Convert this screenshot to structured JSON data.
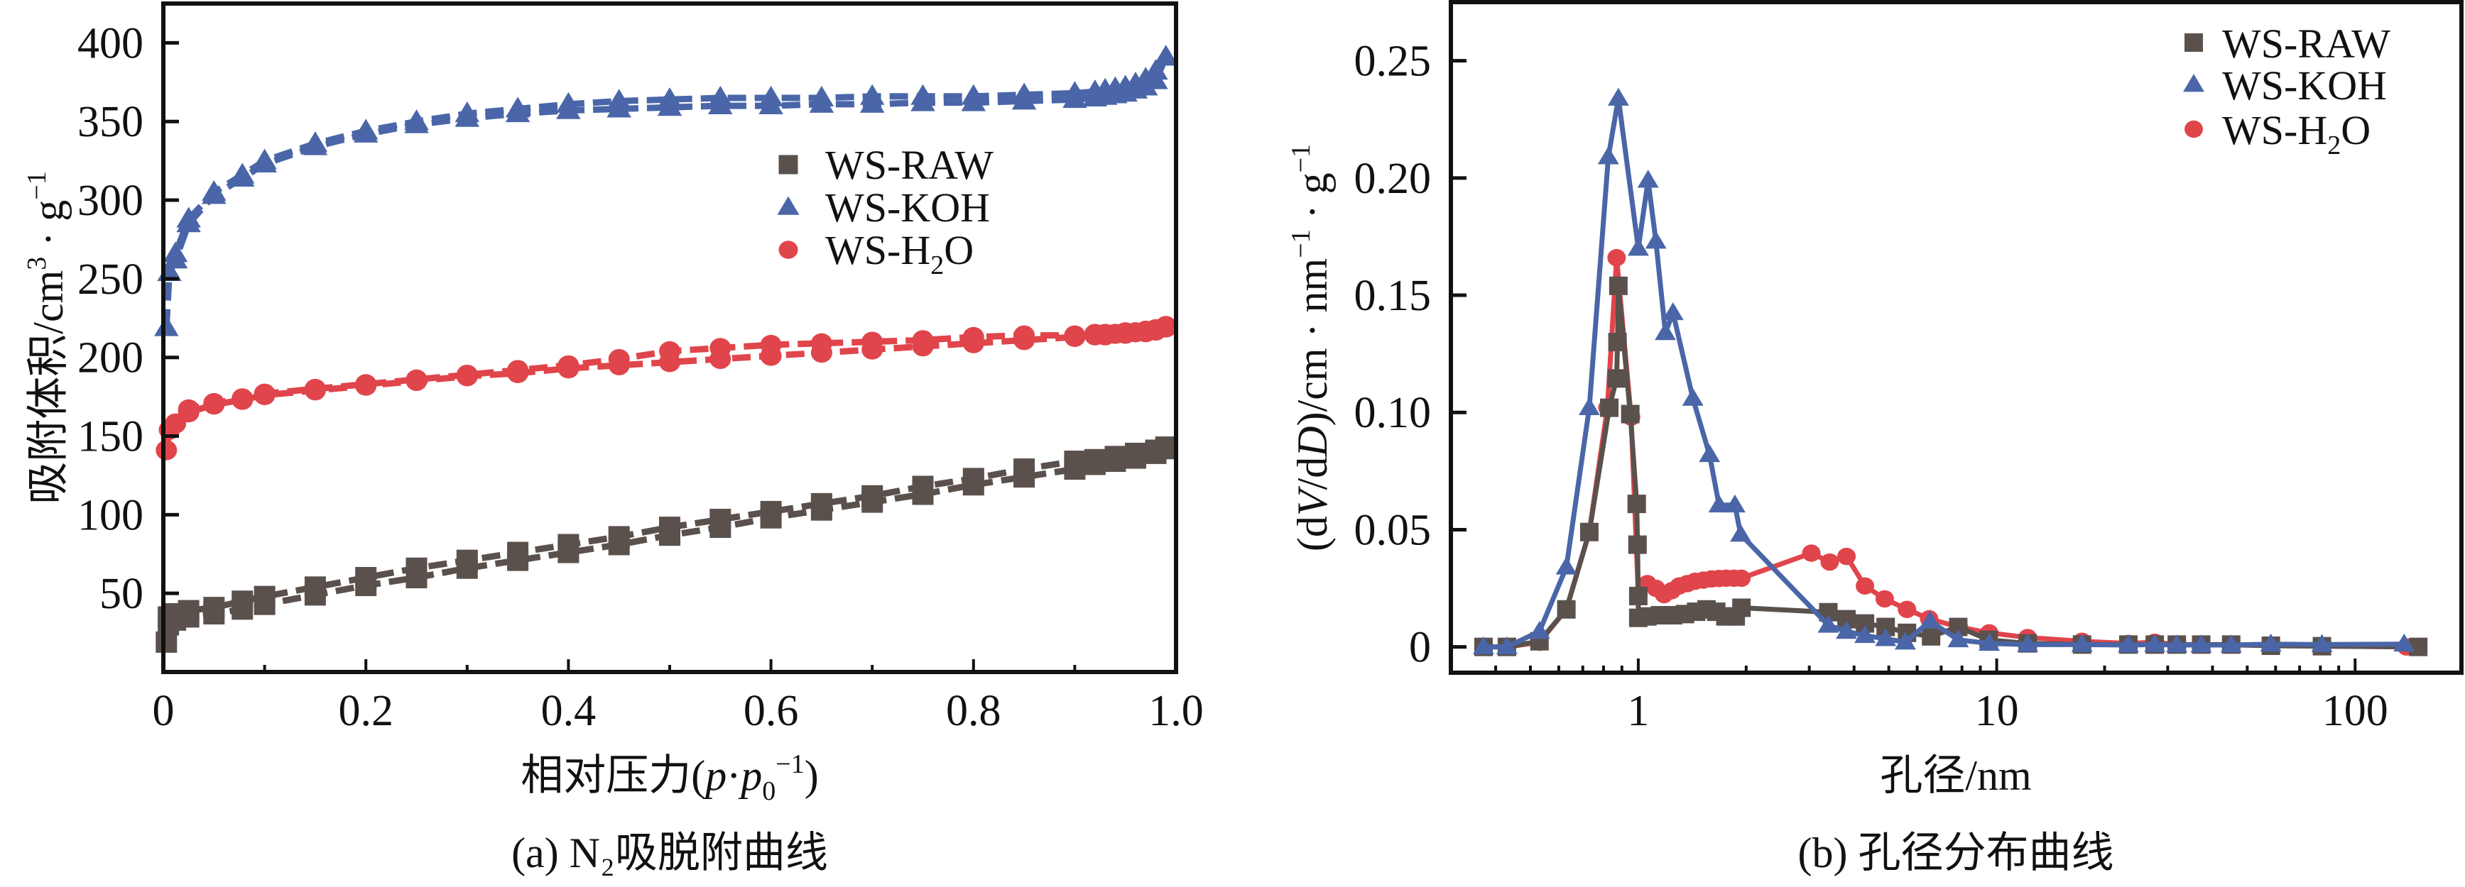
{
  "figure": {
    "captions": [
      "(a) N₂吸脱附曲线",
      "(b) 孔径分布曲线"
    ]
  },
  "colors": {
    "WS-RAW": "#5a514d",
    "WS-KOH": "#4a66a8",
    "WS-H2O": "#e0454b",
    "axis": "#111111"
  },
  "chart_data": [
    {
      "id": "a",
      "type": "line",
      "title": "(a) N₂吸脱附曲线",
      "xlabel": "相对压力( p·p₀⁻¹)",
      "xlabel_parts": {
        "prefix": "相对压力(",
        "p": "p",
        "dot": "·",
        "p0": "p",
        "sub": "0",
        "sup": "−1",
        "suffix": ")"
      },
      "ylabel": "吸附体积/cm³·g⁻¹",
      "ylabel_parts": {
        "main": "吸附体积/cm",
        "sup1": "3",
        "dot": " · g",
        "sup2": "−1"
      },
      "xlim": [
        0,
        1.0
      ],
      "ylim": [
        0,
        425
      ],
      "x_scale": "linear",
      "xticks": [
        0,
        0.2,
        0.4,
        0.6,
        0.8,
        1.0
      ],
      "xtick_labels": [
        "0",
        "0.2",
        "0.4",
        "0.6",
        "0.8",
        "1.0"
      ],
      "x_minor_ticks": [
        0.1,
        0.3,
        0.5,
        0.7,
        0.9
      ],
      "yticks": [
        50,
        100,
        150,
        200,
        250,
        300,
        350,
        400
      ],
      "ytick_labels": [
        "50",
        "100",
        "150",
        "200",
        "250",
        "300",
        "350",
        "400"
      ],
      "grid": false,
      "legend": {
        "position": "center-right",
        "entries": [
          "WS-RAW",
          "WS-KOH",
          "WS-H2O"
        ],
        "labels": [
          {
            "main": "WS-RAW",
            "sub": "",
            "tail": ""
          },
          {
            "main": "WS-KOH",
            "sub": "",
            "tail": ""
          },
          {
            "main": "WS-H",
            "sub": "2",
            "tail": "O"
          }
        ]
      },
      "series": [
        {
          "name": "WS-RAW",
          "marker": "square",
          "line": "dashed",
          "adsorption": {
            "x": [
              0.003,
              0.005,
              0.012,
              0.025,
              0.05,
              0.078,
              0.1,
              0.15,
              0.2,
              0.25,
              0.3,
              0.35,
              0.4,
              0.45,
              0.5,
              0.55,
              0.6,
              0.65,
              0.7,
              0.75,
              0.8,
              0.85,
              0.9,
              0.92,
              0.94,
              0.96,
              0.98,
              0.99
            ],
            "y": [
              19,
              30,
              33,
              35,
              37,
              40,
              43,
              49,
              55,
              60,
              66,
              71,
              76,
              81,
              87,
              92,
              98,
              103,
              108,
              113,
              119,
              124,
              129,
              132,
              134,
              136,
              139,
              142
            ]
          },
          "desorption": {
            "x": [
              0.99,
              0.98,
              0.96,
              0.94,
              0.92,
              0.9,
              0.85,
              0.8,
              0.75,
              0.7,
              0.65,
              0.6,
              0.55,
              0.5,
              0.45,
              0.4,
              0.35,
              0.3,
              0.25,
              0.2,
              0.15,
              0.1,
              0.078,
              0.05,
              0.025,
              0.012,
              0.005
            ],
            "y": [
              143,
              141,
              139,
              137,
              135,
              134,
              129,
              123,
              118,
              112,
              107,
              102,
              97,
              92,
              86,
              81,
              76,
              71,
              66,
              60,
              54,
              48,
              45,
              41,
              39,
              37,
              35
            ]
          }
        },
        {
          "name": "WS-KOH",
          "marker": "triangle",
          "line": "dashed",
          "adsorption": {
            "x": [
              0.003,
              0.006,
              0.012,
              0.025,
              0.05,
              0.078,
              0.1,
              0.15,
              0.2,
              0.25,
              0.3,
              0.35,
              0.4,
              0.45,
              0.5,
              0.55,
              0.6,
              0.65,
              0.7,
              0.75,
              0.8,
              0.85,
              0.9,
              0.92,
              0.93,
              0.94,
              0.95,
              0.96,
              0.97,
              0.98,
              0.99
            ],
            "y": [
              219,
              254,
              262,
              285,
              303,
              314,
              323,
              334,
              342,
              348,
              352,
              355,
              357,
              358,
              359,
              360,
              360,
              361,
              361,
              362,
              362,
              363,
              364,
              365,
              366,
              367,
              368,
              370,
              372,
              376,
              391
            ]
          },
          "desorption": {
            "x": [
              0.99,
              0.98,
              0.97,
              0.96,
              0.95,
              0.94,
              0.93,
              0.92,
              0.9,
              0.85,
              0.8,
              0.75,
              0.7,
              0.65,
              0.6,
              0.55,
              0.5,
              0.45,
              0.4,
              0.35,
              0.3,
              0.25,
              0.2,
              0.15,
              0.1,
              0.078,
              0.05,
              0.025,
              0.012
            ],
            "y": [
              391,
              382,
              377,
              374,
              372,
              371,
              370,
              369,
              368,
              367,
              366,
              366,
              366,
              365,
              365,
              365,
              364,
              363,
              361,
              358,
              355,
              350,
              344,
              336,
              325,
              316,
              305,
              288,
              266
            ]
          }
        },
        {
          "name": "WS-H2O",
          "marker": "circle",
          "line": "dashed",
          "adsorption": {
            "x": [
              0.003,
              0.006,
              0.012,
              0.025,
              0.05,
              0.078,
              0.1,
              0.15,
              0.2,
              0.25,
              0.3,
              0.35,
              0.4,
              0.45,
              0.5,
              0.55,
              0.6,
              0.65,
              0.7,
              0.75,
              0.8,
              0.85,
              0.9,
              0.92,
              0.93,
              0.94,
              0.95,
              0.96,
              0.97,
              0.98,
              0.99
            ],
            "y": [
              141,
              154,
              158,
              165,
              170,
              173,
              176,
              179,
              182,
              185,
              188,
              190,
              193,
              195,
              197,
              199,
              201,
              203,
              205,
              207,
              209,
              211,
              213,
              214,
              214,
              215,
              215,
              216,
              216,
              217,
              219
            ]
          },
          "desorption": {
            "x": [
              0.99,
              0.98,
              0.97,
              0.96,
              0.95,
              0.94,
              0.93,
              0.92,
              0.9,
              0.85,
              0.8,
              0.75,
              0.7,
              0.65,
              0.6,
              0.55,
              0.5,
              0.45,
              0.4,
              0.35,
              0.3,
              0.25,
              0.2,
              0.15,
              0.1,
              0.078,
              0.05,
              0.025,
              0.012
            ],
            "y": [
              220,
              218,
              217,
              216,
              216,
              215,
              215,
              215,
              214,
              214,
              213,
              211,
              210,
              209,
              208,
              206,
              204,
              199,
              195,
              192,
              189,
              186,
              183,
              180,
              177,
              174,
              171,
              167,
              158
            ]
          }
        }
      ]
    },
    {
      "id": "b",
      "type": "line",
      "title": "(b) 孔径分布曲线",
      "xlabel": "孔径/nm",
      "ylabel": "(dV/dD)/cm·nm⁻¹·g⁻¹",
      "ylabel_parts": {
        "open": "(d",
        "V": "V",
        "mid": "/d",
        "D": "D",
        "close": ")/cm · nm",
        "sup1": "−1",
        "dot": " · g",
        "sup2": "−1"
      },
      "xlim": [
        0.3,
        198
      ],
      "ylim": [
        -0.011,
        0.275
      ],
      "x_scale": "log",
      "xticks": [
        1,
        10,
        100
      ],
      "xtick_labels": [
        "1",
        "10",
        "100"
      ],
      "yticks": [
        0,
        0.05,
        0.1,
        0.15,
        0.2,
        0.25
      ],
      "ytick_labels": [
        "0",
        "0.05",
        "0.10",
        "0.15",
        "0.20",
        "0.25"
      ],
      "grid": false,
      "legend": {
        "position": "top-right",
        "entries": [
          "WS-RAW",
          "WS-KOH",
          "WS-H2O"
        ],
        "labels": [
          {
            "main": "WS-RAW",
            "sub": "",
            "tail": ""
          },
          {
            "main": "WS-KOH",
            "sub": "",
            "tail": ""
          },
          {
            "main": "WS-H",
            "sub": "2",
            "tail": "O"
          }
        ]
      },
      "series": [
        {
          "name": "WS-RAW",
          "marker": "square",
          "line": "solid",
          "x": [
            0.37,
            0.43,
            0.53,
            0.63,
            0.73,
            0.83,
            0.87,
            0.875,
            0.88,
            0.95,
            0.99,
            0.995,
            1.0,
            1.0,
            1.06,
            1.15,
            1.25,
            1.35,
            1.45,
            1.55,
            1.65,
            1.75,
            1.87,
            1.94,
            3.39,
            3.81,
            4.29,
            4.9,
            5.62,
            6.56,
            7.81,
            9.5,
            12.2,
            17.3,
            23.3,
            27.6,
            31.8,
            37.2,
            45.1,
            58.2,
            80.8,
            150
          ],
          "y": [
            0,
            0,
            0.0024,
            0.016,
            0.049,
            0.102,
            0.1145,
            0.13,
            0.154,
            0.0993,
            0.061,
            0.0436,
            0.0217,
            0.0124,
            0.013,
            0.0135,
            0.0135,
            0.014,
            0.015,
            0.016,
            0.015,
            0.013,
            0.013,
            0.0167,
            0.0148,
            0.0118,
            0.01,
            0.0085,
            0.006,
            0.0045,
            0.0085,
            0.003,
            0.0015,
            0.001,
            0.001,
            0.001,
            0.001,
            0.001,
            0.001,
            0.0005,
            0.0003,
            0
          ]
        },
        {
          "name": "WS-KOH",
          "marker": "triangle",
          "line": "solid",
          "x": [
            0.37,
            0.43,
            0.53,
            0.63,
            0.73,
            0.825,
            0.88,
            1.0,
            1.065,
            1.12,
            1.19,
            1.25,
            1.42,
            1.58,
            1.68,
            1.86,
            1.93,
            3.39,
            3.81,
            4.29,
            4.9,
            5.56,
            6.52,
            7.81,
            9.53,
            12.2,
            17.3,
            23.3,
            27.6,
            31.8,
            37.2,
            45.1,
            58.2,
            80.8,
            137
          ],
          "y": [
            0,
            0,
            0.0066,
            0.034,
            0.102,
            0.209,
            0.234,
            0.17,
            0.199,
            0.173,
            0.134,
            0.1425,
            0.106,
            0.082,
            0.0605,
            0.0605,
            0.048,
            0.0092,
            0.0066,
            0.0048,
            0.0035,
            0.002,
            0.011,
            0.003,
            0.0015,
            0.001,
            0.001,
            0.0008,
            0.001,
            0.0008,
            0.0008,
            0.0008,
            0.0012,
            0.001,
            0.0012
          ]
        },
        {
          "name": "WS-H2O",
          "marker": "circle",
          "line": "solid",
          "x": [
            0.37,
            0.43,
            0.53,
            0.63,
            0.73,
            0.82,
            0.87,
            0.955,
            1.0,
            1.06,
            1.12,
            1.18,
            1.24,
            1.3,
            1.37,
            1.44,
            1.52,
            1.6,
            1.68,
            1.76,
            1.85,
            1.94,
            3.04,
            3.42,
            3.81,
            4.29,
            4.87,
            5.62,
            6.48,
            7.84,
            9.53,
            12.2,
            17.3,
            23.3,
            27.6,
            31.8,
            37.2,
            45.1,
            58.2,
            80.8,
            139
          ],
          "y": [
            0,
            0,
            0.002,
            0.016,
            0.049,
            0.102,
            0.166,
            0.098,
            0.0223,
            0.027,
            0.025,
            0.0223,
            0.024,
            0.026,
            0.027,
            0.028,
            0.0285,
            0.029,
            0.0292,
            0.0293,
            0.0293,
            0.0293,
            0.04,
            0.0362,
            0.0386,
            0.026,
            0.0205,
            0.016,
            0.012,
            0.0085,
            0.006,
            0.004,
            0.0024,
            0.0015,
            0.002,
            0.001,
            0.0008,
            0.0008,
            0.0006,
            0.0004,
            0
          ]
        }
      ]
    }
  ]
}
